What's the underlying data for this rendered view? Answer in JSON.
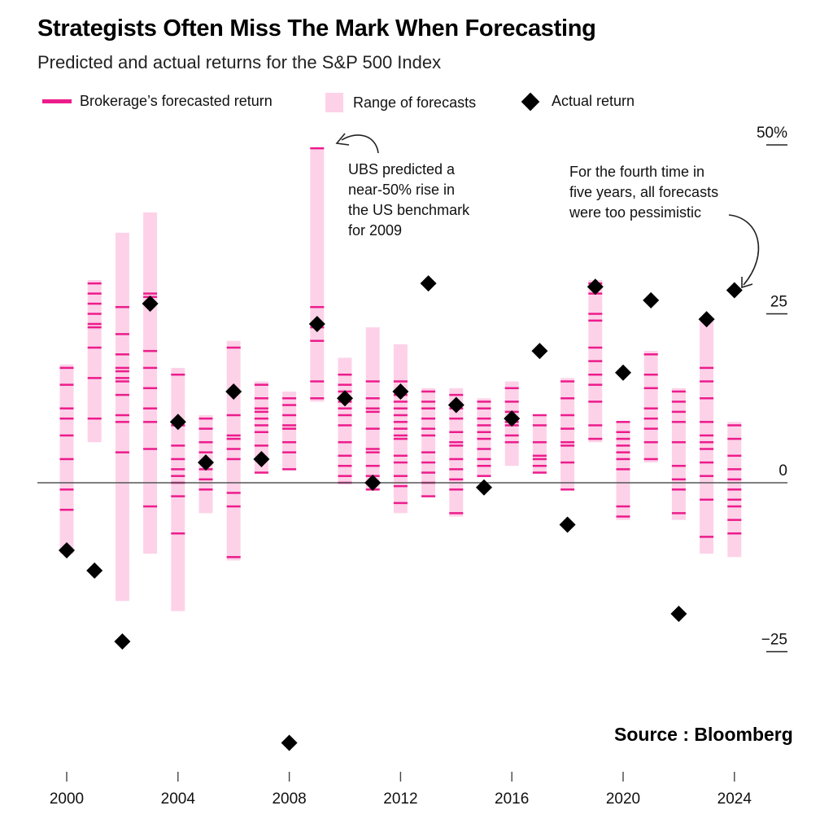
{
  "header": {
    "title": "Strategists Often Miss The Mark When Forecasting",
    "subtitle": "Predicted and actual returns for the S&P 500 Index"
  },
  "legend": {
    "forecast": "Brokerage’s forecasted return",
    "range": "Range of forecasts",
    "actual": "Actual return"
  },
  "source": "Source : Bloomberg",
  "colors": {
    "forecast": "#ec1c8c",
    "range": "#fdd2e8",
    "actual": "#000000",
    "zero_line": "#555555"
  },
  "chart_data": {
    "type": "scatter",
    "title": "Strategists Often Miss The Mark When Forecasting",
    "subtitle": "Predicted and actual returns for the S&P 500 Index",
    "xlabel": "",
    "ylabel": "",
    "xlim": [
      1999.5,
      2025.5
    ],
    "ylim": [
      -40,
      52
    ],
    "y_ticks": [
      {
        "value": 50,
        "label": "50%"
      },
      {
        "value": 25,
        "label": "25"
      },
      {
        "value": 0,
        "label": "0"
      },
      {
        "value": -25,
        "label": "−25"
      }
    ],
    "x_ticks": [
      2000,
      2004,
      2008,
      2012,
      2016,
      2020,
      2024
    ],
    "series": [
      {
        "name": "Range of forecasts",
        "type": "range",
        "values": [
          {
            "x": 2000,
            "low": -10.5,
            "high": 17.5
          },
          {
            "x": 2001,
            "low": 6,
            "high": 30
          },
          {
            "x": 2002,
            "low": -17.5,
            "high": 37
          },
          {
            "x": 2003,
            "low": -10.5,
            "high": 40
          },
          {
            "x": 2004,
            "low": -19,
            "high": 17
          },
          {
            "x": 2005,
            "low": -4.5,
            "high": 10
          },
          {
            "x": 2006,
            "low": -11.5,
            "high": 21
          },
          {
            "x": 2007,
            "low": 1.5,
            "high": 15
          },
          {
            "x": 2008,
            "low": 2,
            "high": 13.5
          },
          {
            "x": 2009,
            "low": 12,
            "high": 49.5
          },
          {
            "x": 2010,
            "low": 0,
            "high": 18.5
          },
          {
            "x": 2011,
            "low": -1,
            "high": 23
          },
          {
            "x": 2012,
            "low": -4.5,
            "high": 20.5
          },
          {
            "x": 2013,
            "low": -2,
            "high": 14
          },
          {
            "x": 2014,
            "low": -5,
            "high": 14
          },
          {
            "x": 2015,
            "low": 1,
            "high": 12.5
          },
          {
            "x": 2016,
            "low": 2.5,
            "high": 15
          },
          {
            "x": 2017,
            "low": 1.5,
            "high": 10
          },
          {
            "x": 2018,
            "low": -1,
            "high": 15.5
          },
          {
            "x": 2019,
            "low": 6,
            "high": 30
          },
          {
            "x": 2020,
            "low": -5.5,
            "high": 9
          },
          {
            "x": 2021,
            "low": 3,
            "high": 19.5
          },
          {
            "x": 2022,
            "low": -5.5,
            "high": 14
          },
          {
            "x": 2023,
            "low": -10.5,
            "high": 24
          },
          {
            "x": 2024,
            "low": -11,
            "high": 9
          }
        ]
      },
      {
        "name": "Brokerage’s forecasted return",
        "type": "dash",
        "values": [
          {
            "x": 2000,
            "ys": [
              -4,
              -1,
              3.5,
              7,
              9.5,
              11,
              14.5,
              17
            ]
          },
          {
            "x": 2001,
            "ys": [
              9.5,
              15.5,
              20,
              23,
              23.5,
              25,
              26.5,
              28,
              29.5
            ]
          },
          {
            "x": 2002,
            "ys": [
              4.5,
              9,
              10,
              13,
              15,
              15.5,
              16.5,
              17,
              19,
              22,
              26
            ]
          },
          {
            "x": 2003,
            "ys": [
              -3.5,
              5,
              9,
              11,
              14,
              17,
              19.5,
              27.5,
              28
            ]
          },
          {
            "x": 2004,
            "ys": [
              -7.5,
              -2,
              0,
              1,
              2,
              3.5,
              5.5,
              8.5,
              16
            ]
          },
          {
            "x": 2005,
            "ys": [
              -1,
              0.5,
              2,
              3,
              4.5,
              6,
              8,
              9.5
            ]
          },
          {
            "x": 2006,
            "ys": [
              -11,
              -3.5,
              -1.5,
              3.5,
              5,
              6.5,
              7,
              10,
              20
            ]
          },
          {
            "x": 2007,
            "ys": [
              1.5,
              3.5,
              5.5,
              7.5,
              8.5,
              9.5,
              10.5,
              11,
              12.5,
              14.5
            ]
          },
          {
            "x": 2008,
            "ys": [
              2,
              4.5,
              6,
              8,
              8.5,
              10,
              11.5,
              12.5
            ]
          },
          {
            "x": 2009,
            "ys": [
              12.5,
              15,
              21,
              23,
              26,
              49.5
            ]
          },
          {
            "x": 2010,
            "ys": [
              0,
              1,
              2.5,
              4,
              6,
              8.5,
              10,
              11,
              12,
              13.5,
              14.5,
              16
            ]
          },
          {
            "x": 2011,
            "ys": [
              -1,
              1,
              2.5,
              4.5,
              5,
              8,
              10.5,
              11,
              12.5,
              15
            ]
          },
          {
            "x": 2012,
            "ys": [
              -3,
              -0.5,
              1,
              3,
              4,
              6.5,
              7,
              8,
              9,
              10,
              11,
              12,
              13,
              15
            ]
          },
          {
            "x": 2013,
            "ys": [
              -2,
              0,
              1.5,
              3,
              4.5,
              7,
              8,
              9.5,
              11,
              12,
              13.5
            ]
          },
          {
            "x": 2014,
            "ys": [
              -4.5,
              -1,
              0.5,
              2,
              3.5,
              5.5,
              6,
              7.5,
              9.5,
              11,
              13
            ]
          },
          {
            "x": 2015,
            "ys": [
              1,
              2.5,
              3.5,
              5,
              6.5,
              7.5,
              8.5,
              9.5,
              11,
              12
            ]
          },
          {
            "x": 2016,
            "ys": [
              6,
              7,
              8.5,
              9,
              10.5,
              12,
              14
            ]
          },
          {
            "x": 2017,
            "ys": [
              1.5,
              2.5,
              3.5,
              4,
              6,
              8.5,
              10
            ]
          },
          {
            "x": 2018,
            "ys": [
              -1,
              3,
              5.5,
              6,
              8,
              10,
              12.5,
              15
            ]
          },
          {
            "x": 2019,
            "ys": [
              6.5,
              8.5,
              12,
              14.5,
              16,
              18,
              20,
              24,
              25,
              28,
              29.5
            ]
          },
          {
            "x": 2020,
            "ys": [
              -5,
              -3.5,
              2,
              3.5,
              4.5,
              5.5,
              6.5,
              7.5,
              9
            ]
          },
          {
            "x": 2021,
            "ys": [
              3.5,
              6,
              8,
              9.5,
              11,
              14,
              16,
              19
            ]
          },
          {
            "x": 2022,
            "ys": [
              -4.5,
              -1,
              0.5,
              2.5,
              6,
              9,
              10.5,
              12,
              13.5
            ]
          },
          {
            "x": 2023,
            "ys": [
              -8,
              -2.5,
              1,
              3,
              5,
              6,
              7,
              9,
              12.5,
              15,
              17
            ]
          },
          {
            "x": 2024,
            "ys": [
              -7.5,
              -5.5,
              -3.5,
              -2.5,
              -1,
              0.5,
              2,
              4,
              6.5,
              8.5
            ]
          }
        ]
      },
      {
        "name": "Actual return",
        "type": "diamond",
        "values": [
          {
            "x": 2000,
            "y": -10
          },
          {
            "x": 2001,
            "y": -13
          },
          {
            "x": 2002,
            "y": -23.5
          },
          {
            "x": 2003,
            "y": 26.5
          },
          {
            "x": 2004,
            "y": 9
          },
          {
            "x": 2005,
            "y": 3
          },
          {
            "x": 2006,
            "y": 13.5
          },
          {
            "x": 2007,
            "y": 3.5
          },
          {
            "x": 2008,
            "y": -38.5
          },
          {
            "x": 2009,
            "y": 23.5
          },
          {
            "x": 2010,
            "y": 12.5
          },
          {
            "x": 2011,
            "y": 0
          },
          {
            "x": 2012,
            "y": 13.5
          },
          {
            "x": 2013,
            "y": 29.5
          },
          {
            "x": 2014,
            "y": 11.5
          },
          {
            "x": 2015,
            "y": -0.7
          },
          {
            "x": 2016,
            "y": 9.5
          },
          {
            "x": 2017,
            "y": 19.5
          },
          {
            "x": 2018,
            "y": -6.2
          },
          {
            "x": 2019,
            "y": 29
          },
          {
            "x": 2020,
            "y": 16.3
          },
          {
            "x": 2021,
            "y": 27
          },
          {
            "x": 2022,
            "y": -19.4
          },
          {
            "x": 2023,
            "y": 24.2
          },
          {
            "x": 2024,
            "y": 28.5
          }
        ]
      }
    ],
    "annotations": [
      {
        "name": "ubs-note",
        "lines": [
          "UBS predicted a",
          "near-50% rise in",
          "the US benchmark",
          "for 2009"
        ]
      },
      {
        "name": "pessimistic-note",
        "lines": [
          "For the fourth time in",
          "five years, all forecasts",
          "were too pessimistic"
        ]
      }
    ]
  }
}
